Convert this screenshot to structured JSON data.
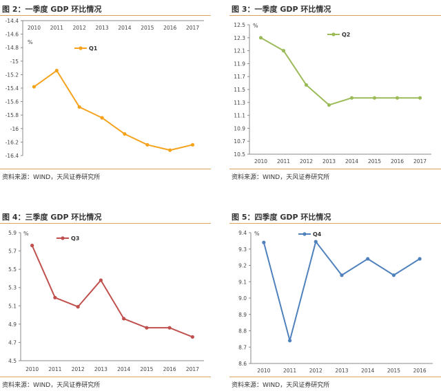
{
  "panels": [
    {
      "title": "图 2：一季度 GDP 环比情况",
      "source": "资料来源：WIND，天风证券研究所"
    },
    {
      "title": "图 3：一季度 GDP 环比情况",
      "source": "资料来源：WIND，天风证券研究所"
    },
    {
      "title": "图 4：三季度 GDP 环比情况",
      "source": "资料来源：WIND，天风证券研究所"
    },
    {
      "title": "图 5：四季度 GDP 环比情况",
      "source": "资料来源：WIND，天风证券研究所"
    }
  ],
  "chart_data": [
    {
      "type": "line",
      "title": "图 2：一季度 GDP 环比情况",
      "unit": "%",
      "x_axis_position": "top",
      "categories": [
        "2010",
        "2011",
        "2012",
        "2013",
        "2014",
        "2015",
        "2016",
        "2017"
      ],
      "series": [
        {
          "name": "Q1",
          "color": "#f5a21c",
          "values": [
            -15.38,
            -15.14,
            -15.68,
            -15.84,
            -16.08,
            -16.24,
            -16.32,
            -16.24
          ]
        }
      ],
      "ylim": [
        -16.4,
        -14.4
      ],
      "yticks": [
        "-14.4",
        "-14.6",
        "-14.8",
        "-15",
        "-15.2",
        "-15.4",
        "-15.6",
        "-15.8",
        "-16",
        "-16.2",
        "-16.4"
      ],
      "ytick_values": [
        -14.4,
        -14.6,
        -14.8,
        -15,
        -15.2,
        -15.4,
        -15.6,
        -15.8,
        -16,
        -16.2,
        -16.4
      ],
      "legend": "top-center"
    },
    {
      "type": "line",
      "title": "图 3：一季度 GDP 环比情况",
      "unit": "%",
      "x_axis_position": "bottom",
      "categories": [
        "2010",
        "2011",
        "2012",
        "2013",
        "2014",
        "2015",
        "2016",
        "2017"
      ],
      "series": [
        {
          "name": "Q2",
          "color": "#9bbb59",
          "values": [
            12.3,
            12.1,
            11.57,
            11.26,
            11.37,
            11.37,
            11.37,
            11.37
          ]
        }
      ],
      "ylim": [
        10.5,
        12.5
      ],
      "yticks": [
        "12.5",
        "12.3",
        "12.1",
        "11.9",
        "11.7",
        "11.5",
        "11.3",
        "11.1",
        "10.9",
        "10.7",
        "10.5"
      ],
      "ytick_values": [
        12.5,
        12.3,
        12.1,
        11.9,
        11.7,
        11.5,
        11.3,
        11.1,
        10.9,
        10.7,
        10.5
      ],
      "legend": "top-right"
    },
    {
      "type": "line",
      "title": "图 4：三季度 GDP 环比情况",
      "unit": "%",
      "x_axis_position": "bottom",
      "categories": [
        "2010",
        "2011",
        "2012",
        "2013",
        "2014",
        "2015",
        "2016",
        "2017"
      ],
      "series": [
        {
          "name": "Q3",
          "color": "#c0504d",
          "values": [
            5.76,
            5.19,
            5.09,
            5.38,
            4.96,
            4.86,
            4.86,
            4.76
          ]
        }
      ],
      "ylim": [
        4.5,
        5.9
      ],
      "yticks": [
        "5.9",
        "5.7",
        "5.5",
        "5.3",
        "5.1",
        "4.9",
        "4.7",
        "4.5"
      ],
      "ytick_values": [
        5.9,
        5.7,
        5.5,
        5.3,
        5.1,
        4.9,
        4.7,
        4.5
      ],
      "legend": "top-left"
    },
    {
      "type": "line",
      "title": "图 5：四季度 GDP 环比情况",
      "unit": "%",
      "x_axis_position": "bottom",
      "categories": [
        "2010",
        "2011",
        "2012",
        "2013",
        "2014",
        "2015",
        "2016"
      ],
      "series": [
        {
          "name": "Q4",
          "color": "#4f81bd",
          "values": [
            9.34,
            8.74,
            9.345,
            9.14,
            9.24,
            9.14,
            9.24
          ]
        }
      ],
      "ylim": [
        8.6,
        9.4
      ],
      "yticks": [
        "9.4",
        "9.3",
        "9.2",
        "9.1",
        "9.0",
        "8.9",
        "8.8",
        "8.7",
        "8.6"
      ],
      "ytick_values": [
        9.4,
        9.3,
        9.2,
        9.1,
        9.0,
        8.9,
        8.8,
        8.7,
        8.6
      ],
      "legend": "top-left"
    }
  ]
}
